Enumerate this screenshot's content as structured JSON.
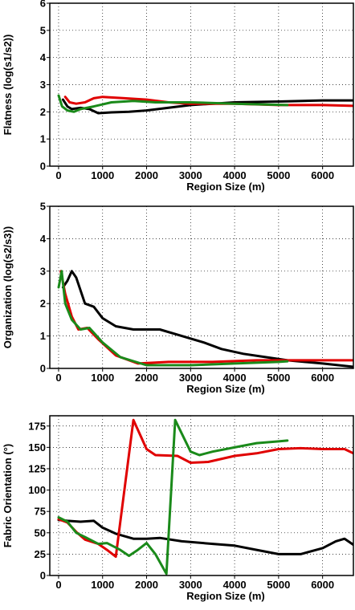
{
  "chart_data": [
    {
      "type": "line",
      "xlabel": "Region Size (m)",
      "ylabel": "Flatness (log(s1/s2))",
      "xlim": [
        -200,
        6700
      ],
      "ylim": [
        0,
        6
      ],
      "xticks": [
        0,
        1000,
        2000,
        3000,
        4000,
        5000,
        6000
      ],
      "yticks": [
        0,
        1,
        2,
        3,
        4,
        5,
        6
      ],
      "grid": true,
      "series": [
        {
          "color": "#000000",
          "points": [
            [
              100,
              2.45
            ],
            [
              200,
              2.2
            ],
            [
              300,
              2.1
            ],
            [
              500,
              2.15
            ],
            [
              700,
              2.1
            ],
            [
              900,
              1.95
            ],
            [
              1200,
              1.98
            ],
            [
              1600,
              2.0
            ],
            [
              2000,
              2.05
            ],
            [
              2500,
              2.15
            ],
            [
              3000,
              2.25
            ],
            [
              3500,
              2.3
            ],
            [
              4000,
              2.35
            ],
            [
              5000,
              2.38
            ],
            [
              6000,
              2.42
            ],
            [
              6700,
              2.42
            ]
          ]
        },
        {
          "color": "#e00000",
          "points": [
            [
              150,
              2.55
            ],
            [
              250,
              2.35
            ],
            [
              400,
              2.3
            ],
            [
              600,
              2.35
            ],
            [
              800,
              2.5
            ],
            [
              1000,
              2.55
            ],
            [
              1500,
              2.5
            ],
            [
              2000,
              2.45
            ],
            [
              2500,
              2.35
            ],
            [
              3000,
              2.3
            ],
            [
              4000,
              2.3
            ],
            [
              5000,
              2.25
            ],
            [
              6000,
              2.25
            ],
            [
              6700,
              2.22
            ]
          ]
        },
        {
          "color": "#1a8a1a",
          "points": [
            [
              0,
              2.6
            ],
            [
              80,
              2.2
            ],
            [
              200,
              2.05
            ],
            [
              350,
              2.0
            ],
            [
              500,
              2.1
            ],
            [
              800,
              2.2
            ],
            [
              1200,
              2.35
            ],
            [
              1700,
              2.4
            ],
            [
              2200,
              2.35
            ],
            [
              3000,
              2.35
            ],
            [
              4000,
              2.3
            ],
            [
              5200,
              2.25
            ]
          ]
        }
      ]
    },
    {
      "type": "line",
      "xlabel": "Region Size (m)",
      "ylabel": "Organization (log(s2/s3))",
      "xlim": [
        -200,
        6700
      ],
      "ylim": [
        0,
        5
      ],
      "xticks": [
        0,
        1000,
        2000,
        3000,
        4000,
        5000,
        6000
      ],
      "yticks": [
        0,
        1,
        2,
        3,
        4,
        5
      ],
      "grid": true,
      "series": [
        {
          "color": "#000000",
          "points": [
            [
              100,
              2.5
            ],
            [
              200,
              2.7
            ],
            [
              300,
              3.0
            ],
            [
              400,
              2.8
            ],
            [
              600,
              2.0
            ],
            [
              800,
              1.9
            ],
            [
              1000,
              1.55
            ],
            [
              1300,
              1.3
            ],
            [
              1700,
              1.2
            ],
            [
              2300,
              1.2
            ],
            [
              2800,
              1.0
            ],
            [
              3300,
              0.8
            ],
            [
              3700,
              0.6
            ],
            [
              4200,
              0.45
            ],
            [
              4700,
              0.35
            ],
            [
              5200,
              0.25
            ],
            [
              6000,
              0.15
            ],
            [
              6700,
              0.05
            ]
          ]
        },
        {
          "color": "#e00000",
          "points": [
            [
              50,
              3.0
            ],
            [
              150,
              2.3
            ],
            [
              300,
              1.6
            ],
            [
              450,
              1.2
            ],
            [
              650,
              1.25
            ],
            [
              900,
              0.9
            ],
            [
              1300,
              0.4
            ],
            [
              1800,
              0.15
            ],
            [
              2500,
              0.2
            ],
            [
              3500,
              0.2
            ],
            [
              4500,
              0.25
            ],
            [
              5500,
              0.25
            ],
            [
              6700,
              0.25
            ]
          ]
        },
        {
          "color": "#1a8a1a",
          "points": [
            [
              0,
              2.5
            ],
            [
              70,
              3.0
            ],
            [
              150,
              2.0
            ],
            [
              300,
              1.5
            ],
            [
              500,
              1.2
            ],
            [
              700,
              1.25
            ],
            [
              1000,
              0.8
            ],
            [
              1400,
              0.35
            ],
            [
              2000,
              0.1
            ],
            [
              3000,
              0.1
            ],
            [
              4000,
              0.15
            ],
            [
              5000,
              0.2
            ],
            [
              5200,
              0.22
            ]
          ]
        }
      ]
    },
    {
      "type": "line",
      "xlabel": "Region Size (m)",
      "ylabel": "Fabric Orientation (°)",
      "xlim": [
        -200,
        6700
      ],
      "ylim": [
        0,
        187
      ],
      "xticks": [
        0,
        1000,
        2000,
        3000,
        4000,
        5000,
        6000
      ],
      "yticks": [
        0,
        25,
        50,
        75,
        100,
        125,
        150,
        175
      ],
      "grid": true,
      "series": [
        {
          "color": "#000000",
          "points": [
            [
              0,
              65
            ],
            [
              200,
              64
            ],
            [
              500,
              63
            ],
            [
              800,
              64
            ],
            [
              1000,
              56
            ],
            [
              1300,
              49
            ],
            [
              1700,
              43
            ],
            [
              2000,
              43
            ],
            [
              2300,
              44
            ],
            [
              2800,
              40
            ],
            [
              3500,
              37
            ],
            [
              4000,
              35
            ],
            [
              4500,
              30
            ],
            [
              5000,
              25
            ],
            [
              5500,
              25
            ],
            [
              6000,
              32
            ],
            [
              6300,
              40
            ],
            [
              6500,
              43
            ],
            [
              6700,
              36
            ]
          ]
        },
        {
          "color": "#e00000",
          "points": [
            [
              0,
              66
            ],
            [
              200,
              62
            ],
            [
              400,
              51
            ],
            [
              600,
              42
            ],
            [
              900,
              37
            ],
            [
              1100,
              30
            ],
            [
              1300,
              22
            ],
            [
              1700,
              182
            ],
            [
              2000,
              148
            ],
            [
              2200,
              141
            ],
            [
              2700,
              140
            ],
            [
              3000,
              132
            ],
            [
              3400,
              133
            ],
            [
              4000,
              140
            ],
            [
              4500,
              143
            ],
            [
              5000,
              148
            ],
            [
              5500,
              149
            ],
            [
              6000,
              148
            ],
            [
              6500,
              148
            ],
            [
              6700,
              143
            ]
          ]
        },
        {
          "color": "#1a8a1a",
          "points": [
            [
              0,
              68
            ],
            [
              200,
              63
            ],
            [
              400,
              50
            ],
            [
              600,
              45
            ],
            [
              900,
              37
            ],
            [
              1100,
              38
            ],
            [
              1400,
              30
            ],
            [
              1600,
              23
            ],
            [
              1800,
              30
            ],
            [
              2000,
              38
            ],
            [
              2200,
              25
            ],
            [
              2450,
              2
            ],
            [
              2650,
              182
            ],
            [
              3000,
              145
            ],
            [
              3200,
              141
            ],
            [
              3500,
              145
            ],
            [
              4000,
              150
            ],
            [
              4500,
              155
            ],
            [
              5000,
              157
            ],
            [
              5200,
              158
            ]
          ]
        }
      ]
    }
  ]
}
